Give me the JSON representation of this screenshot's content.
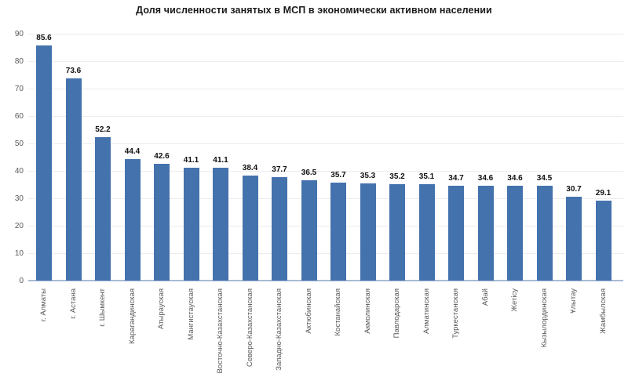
{
  "chart_data": {
    "type": "bar",
    "title": "Доля численности занятых в МСП в экономически активном населении",
    "categories": [
      "г. Алматы",
      "г. Астана",
      "г. Шымкент",
      "Карагандинская",
      "Атырауская",
      "Мангистауская",
      "Восточно-Казахстанская",
      "Северо-Казахстанская",
      "Западно-Казахстанская",
      "Актюбинская",
      "Костанайская",
      "Акмолинская",
      "Павлодарская",
      "Алматинская",
      "Туркестанская",
      "Абай",
      "Жетісу",
      "Кызылординская",
      "Ұлытау",
      "Жамбылская"
    ],
    "values": [
      85.6,
      73.6,
      52.2,
      44.4,
      42.6,
      41.1,
      41.1,
      38.4,
      37.7,
      36.5,
      35.7,
      35.3,
      35.2,
      35.1,
      34.7,
      34.6,
      34.6,
      34.5,
      30.7,
      29.1
    ],
    "xlabel": "",
    "ylabel": "",
    "ylim": [
      0,
      90
    ],
    "ytick_step": 10,
    "grid": true,
    "legend": false,
    "value_labels_shown": true,
    "bar_color": "#4472ad",
    "value_label_color": "#111111",
    "axis_label_color": "#595959",
    "grid_color": "#ececec",
    "axis_line_color": "#a9bbd6",
    "background": "#ffffff"
  }
}
